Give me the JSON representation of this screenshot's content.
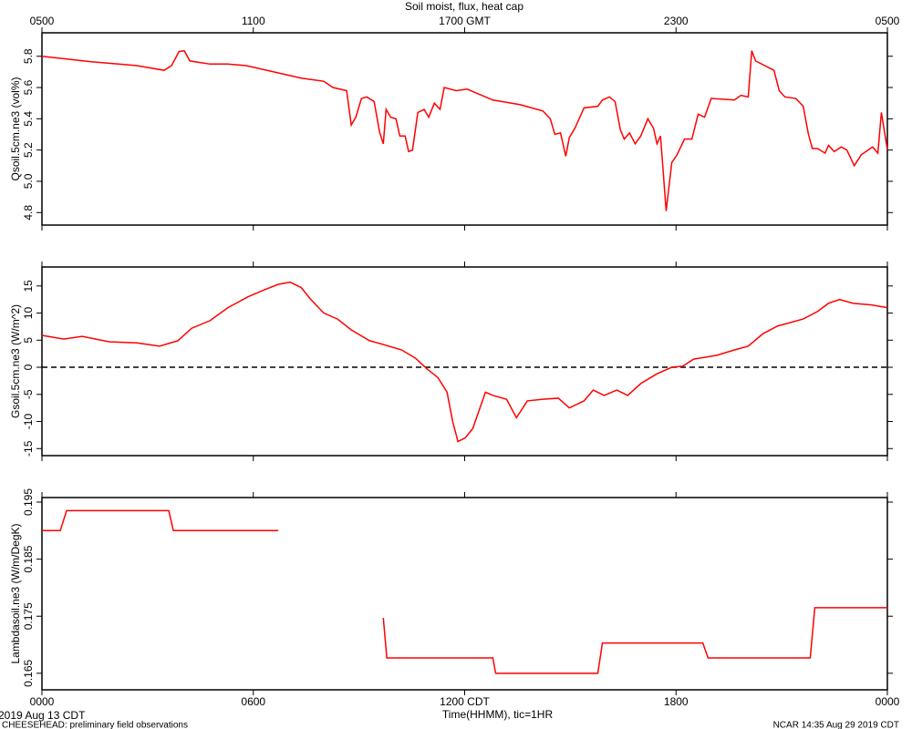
{
  "chart_data": [
    {
      "type": "line",
      "title": "Soil moist, flux, heat cap",
      "ylabel": "Qsoil.5cm.ne3 (vol%)",
      "color": "#ff0000",
      "xlim": [
        0,
        24
      ],
      "ylim": [
        4.72,
        5.95
      ],
      "yticks": [
        4.8,
        {
          "value": 5,
          "label": "5.0"
        },
        5.2,
        5.4,
        5.6,
        5.8
      ],
      "x2ticks": [
        {
          "value": 0,
          "label": "0500"
        },
        {
          "value": 6,
          "label": "1100"
        },
        {
          "value": 12,
          "label": "1700 GMT"
        },
        {
          "value": 18,
          "label": "2300"
        },
        {
          "value": 24,
          "label": "0500"
        }
      ],
      "x": [
        0,
        1.4,
        2.69,
        3.47,
        3.68,
        3.89,
        4.04,
        4.2,
        4.77,
        5.28,
        5.8,
        6.58,
        7.36,
        8.0,
        8.26,
        8.65,
        8.78,
        8.91,
        9.07,
        9.22,
        9.43,
        9.59,
        9.69,
        9.77,
        9.9,
        10.05,
        10.16,
        10.31,
        10.41,
        10.52,
        10.67,
        10.85,
        10.98,
        11.14,
        11.3,
        11.42,
        11.76,
        12.07,
        12.38,
        12.8,
        13.58,
        14.22,
        14.43,
        14.56,
        14.72,
        14.87,
        14.97,
        15.13,
        15.39,
        15.78,
        15.91,
        16.11,
        16.27,
        16.42,
        16.53,
        16.68,
        16.84,
        17.0,
        17.2,
        17.36,
        17.46,
        17.56,
        17.72,
        17.88,
        18.03,
        18.24,
        18.45,
        18.63,
        18.81,
        19.0,
        19.66,
        19.84,
        20.05,
        20.15,
        20.26,
        20.78,
        20.93,
        21.09,
        21.4,
        21.61,
        21.76,
        21.87,
        22.02,
        22.23,
        22.33,
        22.49,
        22.69,
        22.85,
        23.06,
        23.26,
        23.58,
        23.73,
        23.83,
        24.0
      ],
      "values": [
        5.8,
        5.765,
        5.74,
        5.71,
        5.74,
        5.83,
        5.835,
        5.77,
        5.75,
        5.75,
        5.74,
        5.7,
        5.66,
        5.64,
        5.6,
        5.58,
        5.36,
        5.41,
        5.53,
        5.54,
        5.51,
        5.31,
        5.24,
        5.46,
        5.41,
        5.4,
        5.29,
        5.29,
        5.19,
        5.2,
        5.44,
        5.46,
        5.41,
        5.5,
        5.46,
        5.6,
        5.58,
        5.59,
        5.56,
        5.52,
        5.49,
        5.45,
        5.4,
        5.3,
        5.31,
        5.16,
        5.28,
        5.34,
        5.47,
        5.48,
        5.52,
        5.54,
        5.51,
        5.33,
        5.27,
        5.31,
        5.24,
        5.29,
        5.4,
        5.34,
        5.24,
        5.29,
        4.81,
        5.12,
        5.17,
        5.27,
        5.27,
        5.43,
        5.41,
        5.53,
        5.52,
        5.55,
        5.54,
        5.835,
        5.77,
        5.71,
        5.58,
        5.54,
        5.53,
        5.48,
        5.3,
        5.21,
        5.21,
        5.18,
        5.23,
        5.19,
        5.22,
        5.2,
        5.1,
        5.17,
        5.22,
        5.18,
        5.44,
        5.2
      ]
    },
    {
      "type": "line",
      "ylabel": "Gsoil.5cm.ne3 (W/m^2)",
      "color": "#ff0000",
      "xlim": [
        0,
        24
      ],
      "ylim": [
        -16.3,
        18.5
      ],
      "yticks": [
        -15,
        -10,
        -5,
        0,
        5,
        10,
        15
      ],
      "reference_line": 0,
      "x": [
        0,
        0.62,
        1.14,
        1.92,
        2.69,
        3.34,
        3.86,
        4.25,
        4.77,
        5.28,
        5.85,
        6.32,
        6.71,
        7.05,
        7.36,
        7.62,
        8.0,
        8.39,
        8.78,
        9.3,
        9.69,
        10.21,
        10.6,
        10.93,
        11.24,
        11.5,
        11.66,
        11.81,
        12.02,
        12.23,
        12.59,
        12.8,
        13.19,
        13.47,
        13.78,
        14.22,
        14.66,
        14.97,
        15.39,
        15.65,
        15.96,
        16.32,
        16.63,
        17.0,
        17.46,
        17.88,
        18.19,
        18.5,
        19.15,
        19.66,
        20.05,
        20.47,
        20.88,
        21.61,
        22.02,
        22.33,
        22.64,
        23.03,
        23.55,
        24.0
      ],
      "values": [
        5.9,
        5.2,
        5.7,
        4.7,
        4.5,
        3.9,
        4.9,
        7.2,
        8.6,
        11.0,
        13.0,
        14.3,
        15.3,
        15.7,
        14.7,
        12.6,
        10.0,
        8.9,
        6.9,
        4.9,
        4.2,
        3.2,
        1.7,
        -0.3,
        -1.9,
        -4.6,
        -10.0,
        -13.7,
        -13.0,
        -11.3,
        -4.6,
        -5.2,
        -5.9,
        -9.3,
        -6.2,
        -5.9,
        -5.7,
        -7.5,
        -6.2,
        -4.2,
        -5.2,
        -4.2,
        -5.2,
        -3.0,
        -1.2,
        0.0,
        0.2,
        1.5,
        2.2,
        3.2,
        3.9,
        6.2,
        7.6,
        8.9,
        10.3,
        11.8,
        12.5,
        11.8,
        11.5,
        11.0
      ]
    },
    {
      "type": "line",
      "ylabel": "Lambdasoil.ne3 (W/m/DegK)",
      "color": "#ff0000",
      "xlabel": "Time(HHMM), tic=1HR",
      "xlim": [
        0,
        24
      ],
      "ylim": [
        0.1621,
        0.1958
      ],
      "yticks": [
        0.165,
        0.175,
        0.185,
        0.195
      ],
      "xticks": [
        {
          "value": 0,
          "label": "0000"
        },
        {
          "value": 6,
          "label": "0600"
        },
        {
          "value": 12,
          "label": "1200 CDT"
        },
        {
          "value": 18,
          "label": "1800"
        },
        {
          "value": 24,
          "label": "0000"
        }
      ],
      "x": [
        0,
        0.52,
        0.7,
        3.6,
        3.73,
        6.71,
        null,
        9.69,
        9.79,
        12.8,
        12.88,
        15.78,
        15.91,
        18.76,
        18.91,
        21.81,
        21.94,
        24.0
      ],
      "values": [
        0.19,
        0.19,
        0.1935,
        0.1935,
        0.19,
        0.19,
        null,
        0.1747,
        0.1677,
        0.1677,
        0.165,
        0.165,
        0.1703,
        0.1703,
        0.1677,
        0.1677,
        0.1765,
        0.1765
      ]
    }
  ],
  "footer": {
    "date": "2019 Aug 13 CDT",
    "project": "CHEESEHEAD: preliminary field observations",
    "stamp": "NCAR 14:35 Aug 29 2019 CDT"
  }
}
